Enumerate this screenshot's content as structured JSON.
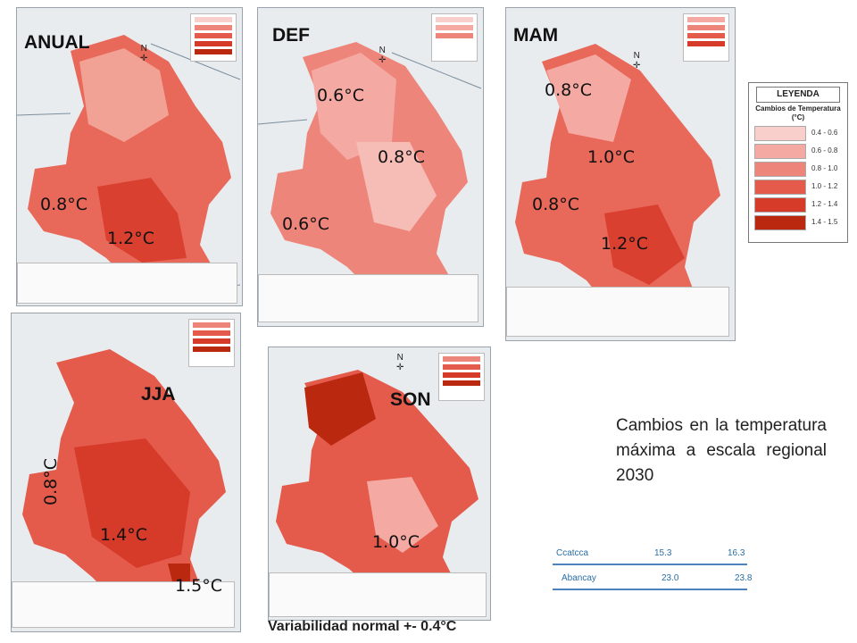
{
  "maps": [
    {
      "season": "ANUAL",
      "labels": [
        "0.8°C",
        "1.2°C"
      ]
    },
    {
      "season": "DEF",
      "labels": [
        "0.6°C",
        "0.8°C",
        "0.6°C"
      ]
    },
    {
      "season": "MAM",
      "labels": [
        "0.8°C",
        "1.0°C",
        "0.8°C",
        "1.2°C"
      ]
    },
    {
      "season": "JJA",
      "labels": [
        "0.8°C",
        "1.4°C",
        "1.5°C"
      ]
    },
    {
      "season": "SON",
      "labels": [
        "1.0°C"
      ]
    }
  ],
  "legend": {
    "title": "LEYENDA",
    "subtitle": "Cambios de Temperatura (°C)",
    "classes": [
      {
        "range": "0.4 - 0.6",
        "color": "#f8cfcb"
      },
      {
        "range": "0.6 - 0.8",
        "color": "#f4aaa3"
      },
      {
        "range": "0.8 - 1.0",
        "color": "#ee857a"
      },
      {
        "range": "1.0 - 1.2",
        "color": "#e45a4b"
      },
      {
        "range": "1.2 - 1.4",
        "color": "#d63a28"
      },
      {
        "range": "1.4 - 1.5",
        "color": "#b9280f"
      }
    ]
  },
  "caption": "Cambios en la temperatura máxima a escala regional 2030",
  "table": [
    {
      "station": "Ccatcca",
      "v1": "15.3",
      "v2": "16.3"
    },
    {
      "station": "Abancay",
      "v1": "23.0",
      "v2": "23.8"
    }
  ],
  "footer_note": "Variabilidad normal +- 0.4°C"
}
